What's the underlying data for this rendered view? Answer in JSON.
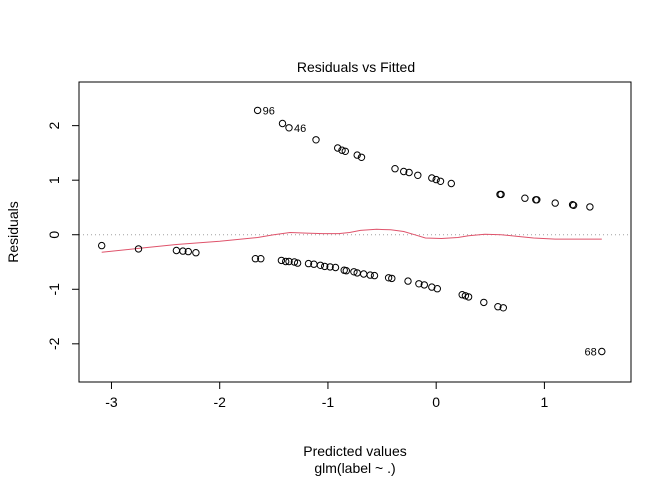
{
  "chart_data": {
    "type": "scatter",
    "title": "Residuals vs Fitted",
    "xlabel": "Predicted values",
    "xlabel_sub": "glm(label ~ .)",
    "ylabel": "Residuals",
    "xlim": [
      -3.3,
      1.8
    ],
    "ylim": [
      -2.7,
      2.8
    ],
    "x_ticks": [
      -3,
      -2,
      -1,
      0,
      1
    ],
    "y_ticks": [
      -2,
      -1,
      0,
      1,
      2
    ],
    "grid": false,
    "reference_line": {
      "y": 0,
      "style": "dotted",
      "color": "#a0a0a0"
    },
    "point_color": "#000000",
    "smooth_color": "#df536b",
    "points": [
      [
        -1.65,
        2.28
      ],
      [
        -1.42,
        2.04
      ],
      [
        -1.36,
        1.96
      ],
      [
        -1.11,
        1.74
      ],
      [
        -0.91,
        1.59
      ],
      [
        -0.87,
        1.55
      ],
      [
        -0.84,
        1.53
      ],
      [
        -0.73,
        1.46
      ],
      [
        -0.69,
        1.42
      ],
      [
        -0.38,
        1.21
      ],
      [
        -0.3,
        1.16
      ],
      [
        -0.25,
        1.14
      ],
      [
        -0.17,
        1.09
      ],
      [
        -0.04,
        1.04
      ],
      [
        0.0,
        1.01
      ],
      [
        0.04,
        0.98
      ],
      [
        0.14,
        0.94
      ],
      [
        0.59,
        0.74
      ],
      [
        0.6,
        0.74
      ],
      [
        0.82,
        0.67
      ],
      [
        0.92,
        0.64
      ],
      [
        0.93,
        0.64
      ],
      [
        1.1,
        0.58
      ],
      [
        1.26,
        0.55
      ],
      [
        1.27,
        0.54
      ],
      [
        1.42,
        0.51
      ],
      [
        -3.09,
        -0.2
      ],
      [
        -2.75,
        -0.26
      ],
      [
        -2.4,
        -0.29
      ],
      [
        -2.34,
        -0.3
      ],
      [
        -2.29,
        -0.31
      ],
      [
        -2.22,
        -0.33
      ],
      [
        -1.67,
        -0.44
      ],
      [
        -1.62,
        -0.44
      ],
      [
        -1.43,
        -0.47
      ],
      [
        -1.39,
        -0.49
      ],
      [
        -1.36,
        -0.49
      ],
      [
        -1.31,
        -0.5
      ],
      [
        -1.28,
        -0.52
      ],
      [
        -1.18,
        -0.53
      ],
      [
        -1.13,
        -0.54
      ],
      [
        -1.07,
        -0.56
      ],
      [
        -1.03,
        -0.58
      ],
      [
        -0.98,
        -0.59
      ],
      [
        -0.93,
        -0.6
      ],
      [
        -0.85,
        -0.65
      ],
      [
        -0.83,
        -0.66
      ],
      [
        -0.76,
        -0.68
      ],
      [
        -0.73,
        -0.7
      ],
      [
        -0.67,
        -0.72
      ],
      [
        -0.61,
        -0.74
      ],
      [
        -0.57,
        -0.75
      ],
      [
        -0.44,
        -0.79
      ],
      [
        -0.41,
        -0.8
      ],
      [
        -0.26,
        -0.85
      ],
      [
        -0.16,
        -0.9
      ],
      [
        -0.11,
        -0.92
      ],
      [
        -0.04,
        -0.96
      ],
      [
        0.01,
        -0.99
      ],
      [
        0.24,
        -1.1
      ],
      [
        0.27,
        -1.12
      ],
      [
        0.3,
        -1.14
      ],
      [
        0.44,
        -1.24
      ],
      [
        0.57,
        -1.32
      ],
      [
        0.62,
        -1.34
      ],
      [
        1.53,
        -2.14
      ]
    ],
    "smooth": [
      [
        -3.09,
        -0.32
      ],
      [
        -2.75,
        -0.25
      ],
      [
        -2.4,
        -0.18
      ],
      [
        -2.0,
        -0.12
      ],
      [
        -1.65,
        -0.05
      ],
      [
        -1.5,
        0.0
      ],
      [
        -1.35,
        0.04
      ],
      [
        -1.2,
        0.03
      ],
      [
        -1.05,
        0.02
      ],
      [
        -0.9,
        0.02
      ],
      [
        -0.8,
        0.04
      ],
      [
        -0.7,
        0.08
      ],
      [
        -0.55,
        0.1
      ],
      [
        -0.42,
        0.09
      ],
      [
        -0.3,
        0.06
      ],
      [
        -0.2,
        0.0
      ],
      [
        -0.1,
        -0.06
      ],
      [
        0.05,
        -0.07
      ],
      [
        0.2,
        -0.05
      ],
      [
        0.3,
        -0.02
      ],
      [
        0.45,
        0.01
      ],
      [
        0.6,
        0.0
      ],
      [
        0.75,
        -0.03
      ],
      [
        0.9,
        -0.06
      ],
      [
        1.1,
        -0.08
      ],
      [
        1.3,
        -0.08
      ],
      [
        1.53,
        -0.08
      ]
    ],
    "labeled_points": [
      {
        "label": "96",
        "x": -1.65,
        "y": 2.28
      },
      {
        "label": "46",
        "x": -1.36,
        "y": 1.96
      },
      {
        "label": "68",
        "x": 1.53,
        "y": -2.14
      }
    ]
  }
}
